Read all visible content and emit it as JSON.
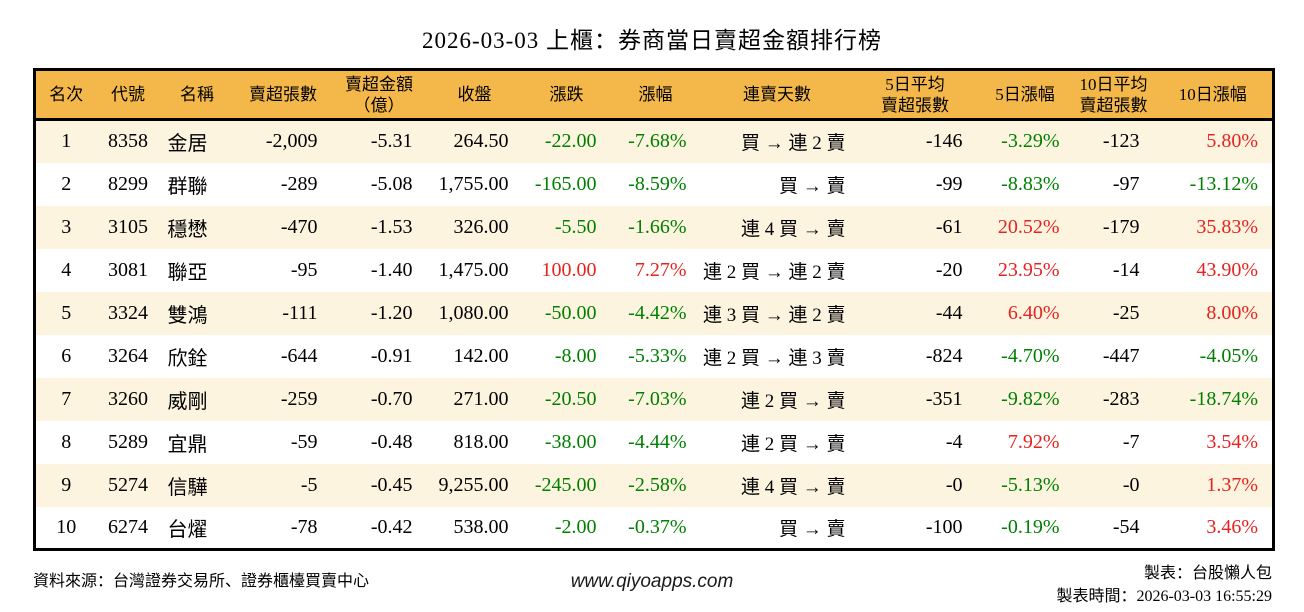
{
  "title": "2026-03-03 上櫃：券商當日賣超金額排行榜",
  "colors": {
    "header_bg": "#f4b84a",
    "row_alt_bg": "#fdf4e0",
    "row_bg": "#ffffff",
    "gain_red": "#e6231f",
    "loss_green": "#008000",
    "border": "#000000"
  },
  "table": {
    "columns": [
      {
        "id": "rank",
        "lines": [
          "名次"
        ],
        "align": "center",
        "signed": false
      },
      {
        "id": "code",
        "lines": [
          "代號"
        ],
        "align": "center",
        "signed": false
      },
      {
        "id": "name",
        "lines": [
          "名稱"
        ],
        "align": "left",
        "signed": false
      },
      {
        "id": "net-sell-lots",
        "lines": [
          "賣超張數"
        ],
        "align": "right",
        "signed": false
      },
      {
        "id": "net-sell-amount",
        "lines": [
          "賣超金額",
          "（億）"
        ],
        "align": "right",
        "signed": false
      },
      {
        "id": "close",
        "lines": [
          "收盤"
        ],
        "align": "right",
        "signed": false
      },
      {
        "id": "change",
        "lines": [
          "漲跌"
        ],
        "align": "right",
        "signed": true
      },
      {
        "id": "change-pct",
        "lines": [
          "漲幅"
        ],
        "align": "right",
        "signed": true
      },
      {
        "id": "streak",
        "lines": [
          "連賣天數"
        ],
        "align": "right",
        "signed": false
      },
      {
        "id": "avg5-lots",
        "lines": [
          "5日平均",
          "賣超張數"
        ],
        "align": "right",
        "signed": false
      },
      {
        "id": "pct5",
        "lines": [
          "5日漲幅"
        ],
        "align": "right",
        "signed": true
      },
      {
        "id": "avg10-lots",
        "lines": [
          "10日平均",
          "賣超張數"
        ],
        "align": "right",
        "signed": false
      },
      {
        "id": "pct10",
        "lines": [
          "10日漲幅"
        ],
        "align": "right",
        "signed": true
      }
    ],
    "rows": [
      [
        "1",
        "8358",
        "金居",
        "-2,009",
        "-5.31",
        "264.50",
        "-22.00",
        "-7.68%",
        "買 → 連 2 賣",
        "-146",
        "-3.29%",
        "-123",
        "5.80%"
      ],
      [
        "2",
        "8299",
        "群聯",
        "-289",
        "-5.08",
        "1,755.00",
        "-165.00",
        "-8.59%",
        "買 → 賣",
        "-99",
        "-8.83%",
        "-97",
        "-13.12%"
      ],
      [
        "3",
        "3105",
        "穩懋",
        "-470",
        "-1.53",
        "326.00",
        "-5.50",
        "-1.66%",
        "連 4 買 → 賣",
        "-61",
        "20.52%",
        "-179",
        "35.83%"
      ],
      [
        "4",
        "3081",
        "聯亞",
        "-95",
        "-1.40",
        "1,475.00",
        "100.00",
        "7.27%",
        "連 2 買 → 連 2 賣",
        "-20",
        "23.95%",
        "-14",
        "43.90%"
      ],
      [
        "5",
        "3324",
        "雙鴻",
        "-111",
        "-1.20",
        "1,080.00",
        "-50.00",
        "-4.42%",
        "連 3 買 → 連 2 賣",
        "-44",
        "6.40%",
        "-25",
        "8.00%"
      ],
      [
        "6",
        "3264",
        "欣銓",
        "-644",
        "-0.91",
        "142.00",
        "-8.00",
        "-5.33%",
        "連 2 買 → 連 3 賣",
        "-824",
        "-4.70%",
        "-447",
        "-4.05%"
      ],
      [
        "7",
        "3260",
        "威剛",
        "-259",
        "-0.70",
        "271.00",
        "-20.50",
        "-7.03%",
        "連 2 買 → 賣",
        "-351",
        "-9.82%",
        "-283",
        "-18.74%"
      ],
      [
        "8",
        "5289",
        "宜鼎",
        "-59",
        "-0.48",
        "818.00",
        "-38.00",
        "-4.44%",
        "連 2 買 → 賣",
        "-4",
        "7.92%",
        "-7",
        "3.54%"
      ],
      [
        "9",
        "5274",
        "信驊",
        "-5",
        "-0.45",
        "9,255.00",
        "-245.00",
        "-2.58%",
        "連 4 買 → 賣",
        "-0",
        "-5.13%",
        "-0",
        "1.37%"
      ],
      [
        "10",
        "6274",
        "台燿",
        "-78",
        "-0.42",
        "538.00",
        "-2.00",
        "-0.37%",
        "買 → 賣",
        "-100",
        "-0.19%",
        "-54",
        "3.46%"
      ]
    ]
  },
  "footer": {
    "source": "資料來源：台灣證券交易所、證券櫃檯買賣中心",
    "website": "www.qiyoapps.com",
    "made_by": "製表：台股懶人包",
    "made_time": "製表時間：2026-03-03 16:55:29"
  }
}
